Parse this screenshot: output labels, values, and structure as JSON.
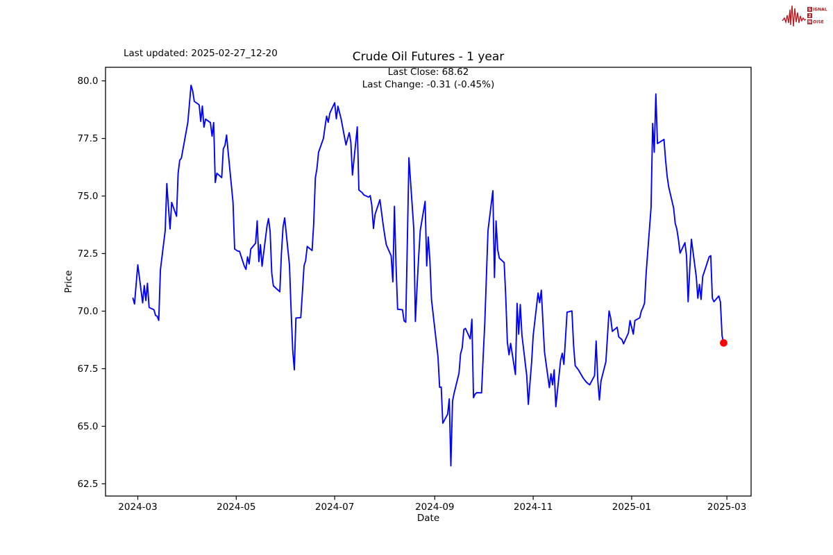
{
  "header": {
    "last_updated": "Last updated: 2025-02-27_12-20",
    "title": "Crude Oil Futures - 1 year",
    "last_close_line": "Last Close: 68.62",
    "last_change_line": "Last Change: -0.31 (-0.45%)"
  },
  "logo": {
    "s1": "S",
    "s1rest": "IGNAL",
    "s2": "2",
    "s3": "N",
    "s3rest": "OISE",
    "color": "#b01f24"
  },
  "chart_data": {
    "type": "line",
    "title": "Crude Oil Futures - 1 year",
    "xlabel": "Date",
    "ylabel": "Price",
    "grid": false,
    "legend": "none",
    "line_color": "#0000ff",
    "last_point_color": "#ff0000",
    "xlim": [
      "2024-02-10",
      "2025-03-16"
    ],
    "ylim": [
      61.97,
      80.59
    ],
    "y_ticks": [
      80.0,
      77.5,
      75.0,
      72.5,
      70.0,
      67.5,
      65.0,
      62.5
    ],
    "x_ticks": [
      {
        "v": "2024-03-01",
        "label": "2024-03"
      },
      {
        "v": "2024-05-01",
        "label": "2024-05"
      },
      {
        "v": "2024-07-01",
        "label": "2024-07"
      },
      {
        "v": "2024-09-01",
        "label": "2024-09"
      },
      {
        "v": "2024-11-01",
        "label": "2024-11"
      },
      {
        "v": "2025-01-01",
        "label": "2025-01"
      },
      {
        "v": "2025-03-01",
        "label": "2025-03"
      }
    ],
    "series": [
      {
        "name": "Crude Oil Futures",
        "dates": [
          "2024-02-27",
          "2024-02-28",
          "2024-02-29",
          "2024-03-01",
          "2024-03-04",
          "2024-03-05",
          "2024-03-06",
          "2024-03-07",
          "2024-03-08",
          "2024-03-11",
          "2024-03-12",
          "2024-03-13",
          "2024-03-14",
          "2024-03-15",
          "2024-03-18",
          "2024-03-19",
          "2024-03-20",
          "2024-03-21",
          "2024-03-22",
          "2024-03-25",
          "2024-03-26",
          "2024-03-27",
          "2024-03-28",
          "2024-04-01",
          "2024-04-02",
          "2024-04-03",
          "2024-04-04",
          "2024-04-05",
          "2024-04-08",
          "2024-04-09",
          "2024-04-10",
          "2024-04-11",
          "2024-04-12",
          "2024-04-15",
          "2024-04-16",
          "2024-04-17",
          "2024-04-18",
          "2024-04-19",
          "2024-04-22",
          "2024-04-23",
          "2024-04-24",
          "2024-04-25",
          "2024-04-26",
          "2024-04-29",
          "2024-04-30",
          "2024-05-01",
          "2024-05-02",
          "2024-05-03",
          "2024-05-06",
          "2024-05-07",
          "2024-05-08",
          "2024-05-09",
          "2024-05-10",
          "2024-05-13",
          "2024-05-14",
          "2024-05-15",
          "2024-05-16",
          "2024-05-17",
          "2024-05-20",
          "2024-05-21",
          "2024-05-22",
          "2024-05-23",
          "2024-05-24",
          "2024-05-28",
          "2024-05-29",
          "2024-05-30",
          "2024-05-31",
          "2024-06-03",
          "2024-06-04",
          "2024-06-05",
          "2024-06-06",
          "2024-06-07",
          "2024-06-10",
          "2024-06-11",
          "2024-06-12",
          "2024-06-13",
          "2024-06-14",
          "2024-06-17",
          "2024-06-18",
          "2024-06-19",
          "2024-06-20",
          "2024-06-21",
          "2024-06-24",
          "2024-06-25",
          "2024-06-26",
          "2024-06-27",
          "2024-06-28",
          "2024-07-01",
          "2024-07-02",
          "2024-07-03",
          "2024-07-05",
          "2024-07-08",
          "2024-07-09",
          "2024-07-10",
          "2024-07-11",
          "2024-07-12",
          "2024-07-15",
          "2024-07-16",
          "2024-07-17",
          "2024-07-18",
          "2024-07-19",
          "2024-07-22",
          "2024-07-23",
          "2024-07-24",
          "2024-07-25",
          "2024-07-26",
          "2024-07-29",
          "2024-07-30",
          "2024-07-31",
          "2024-08-01",
          "2024-08-02",
          "2024-08-05",
          "2024-08-06",
          "2024-08-07",
          "2024-08-08",
          "2024-08-09",
          "2024-08-12",
          "2024-08-13",
          "2024-08-14",
          "2024-08-15",
          "2024-08-16",
          "2024-08-19",
          "2024-08-20",
          "2024-08-21",
          "2024-08-22",
          "2024-08-23",
          "2024-08-26",
          "2024-08-27",
          "2024-08-28",
          "2024-08-29",
          "2024-08-30",
          "2024-09-03",
          "2024-09-04",
          "2024-09-05",
          "2024-09-06",
          "2024-09-09",
          "2024-09-10",
          "2024-09-11",
          "2024-09-12",
          "2024-09-13",
          "2024-09-16",
          "2024-09-17",
          "2024-09-18",
          "2024-09-19",
          "2024-09-20",
          "2024-09-23",
          "2024-09-24",
          "2024-09-25",
          "2024-09-26",
          "2024-09-27",
          "2024-09-30",
          "2024-10-01",
          "2024-10-02",
          "2024-10-03",
          "2024-10-04",
          "2024-10-07",
          "2024-10-08",
          "2024-10-09",
          "2024-10-10",
          "2024-10-11",
          "2024-10-14",
          "2024-10-15",
          "2024-10-16",
          "2024-10-17",
          "2024-10-18",
          "2024-10-21",
          "2024-10-22",
          "2024-10-23",
          "2024-10-24",
          "2024-10-25",
          "2024-10-28",
          "2024-10-29",
          "2024-10-30",
          "2024-10-31",
          "2024-11-01",
          "2024-11-04",
          "2024-11-05",
          "2024-11-06",
          "2024-11-07",
          "2024-11-08",
          "2024-11-11",
          "2024-11-12",
          "2024-11-13",
          "2024-11-14",
          "2024-11-15",
          "2024-11-18",
          "2024-11-19",
          "2024-11-20",
          "2024-11-21",
          "2024-11-22",
          "2024-11-25",
          "2024-11-26",
          "2024-11-27",
          "2024-11-29",
          "2024-12-02",
          "2024-12-03",
          "2024-12-04",
          "2024-12-05",
          "2024-12-06",
          "2024-12-09",
          "2024-12-10",
          "2024-12-11",
          "2024-12-12",
          "2024-12-13",
          "2024-12-16",
          "2024-12-17",
          "2024-12-18",
          "2024-12-19",
          "2024-12-20",
          "2024-12-23",
          "2024-12-24",
          "2024-12-26",
          "2024-12-27",
          "2024-12-30",
          "2024-12-31",
          "2025-01-02",
          "2025-01-03",
          "2025-01-06",
          "2025-01-07",
          "2025-01-08",
          "2025-01-09",
          "2025-01-10",
          "2025-01-13",
          "2025-01-14",
          "2025-01-15",
          "2025-01-16",
          "2025-01-17",
          "2025-01-21",
          "2025-01-22",
          "2025-01-23",
          "2025-01-24",
          "2025-01-27",
          "2025-01-28",
          "2025-01-29",
          "2025-01-30",
          "2025-01-31",
          "2025-02-03",
          "2025-02-04",
          "2025-02-05",
          "2025-02-06",
          "2025-02-07",
          "2025-02-10",
          "2025-02-11",
          "2025-02-12",
          "2025-02-13",
          "2025-02-14",
          "2025-02-18",
          "2025-02-19",
          "2025-02-20",
          "2025-02-21",
          "2025-02-24",
          "2025-02-25",
          "2025-02-26",
          "2025-02-27"
        ],
        "values": [
          70.56,
          70.31,
          71.2,
          72.01,
          70.36,
          71.11,
          70.46,
          71.21,
          70.16,
          70.06,
          69.81,
          69.78,
          69.6,
          71.8,
          73.5,
          75.54,
          74.5,
          73.57,
          74.72,
          74.12,
          75.99,
          76.55,
          76.65,
          78.2,
          79.0,
          79.81,
          79.56,
          79.11,
          78.96,
          78.24,
          78.91,
          77.99,
          78.34,
          78.19,
          77.6,
          78.19,
          75.59,
          75.99,
          75.8,
          77.05,
          77.2,
          77.65,
          76.9,
          74.72,
          72.7,
          72.65,
          72.61,
          72.6,
          71.96,
          71.81,
          72.36,
          72.05,
          72.7,
          72.95,
          73.92,
          72.15,
          72.89,
          71.95,
          73.67,
          74.02,
          73.47,
          71.65,
          71.1,
          70.84,
          72.5,
          73.67,
          74.05,
          72.0,
          70.0,
          68.3,
          67.45,
          69.7,
          69.72,
          70.8,
          71.97,
          72.2,
          72.81,
          72.63,
          73.8,
          75.78,
          76.2,
          76.9,
          77.5,
          78.0,
          78.47,
          78.2,
          78.6,
          79.05,
          78.35,
          78.9,
          78.35,
          77.22,
          77.5,
          77.75,
          77.34,
          75.91,
          78.0,
          75.26,
          75.2,
          75.15,
          75.05,
          74.95,
          75.02,
          74.6,
          73.59,
          74.2,
          74.84,
          74.3,
          73.77,
          73.3,
          72.88,
          72.4,
          71.27,
          74.55,
          72.0,
          70.08,
          70.06,
          69.58,
          69.52,
          73.0,
          76.66,
          73.57,
          69.55,
          71.0,
          72.3,
          73.5,
          74.77,
          71.96,
          73.22,
          72.2,
          70.5,
          68.0,
          66.69,
          66.7,
          65.13,
          65.53,
          66.19,
          63.28,
          66.09,
          66.44,
          67.3,
          68.15,
          68.4,
          69.2,
          69.25,
          68.8,
          69.65,
          66.24,
          66.4,
          66.46,
          66.45,
          68.0,
          69.5,
          71.5,
          73.5,
          75.23,
          71.46,
          73.92,
          72.66,
          72.3,
          72.11,
          70.6,
          68.65,
          68.1,
          68.6,
          67.25,
          70.34,
          69.0,
          70.29,
          68.95,
          67.2,
          65.95,
          66.9,
          67.76,
          68.94,
          70.79,
          70.37,
          70.91,
          69.54,
          68.23,
          66.68,
          67.28,
          66.8,
          67.45,
          65.85,
          67.87,
          68.17,
          67.69,
          68.8,
          69.95,
          70.01,
          68.52,
          67.63,
          67.45,
          67.09,
          67.0,
          66.91,
          66.85,
          66.8,
          67.2,
          68.7,
          67.03,
          66.14,
          66.97,
          67.8,
          68.9,
          70.01,
          69.71,
          69.12,
          69.3,
          68.88,
          68.76,
          68.58,
          69.06,
          69.59,
          69.0,
          69.59,
          69.71,
          70.01,
          70.15,
          70.35,
          71.68,
          74.5,
          78.15,
          76.9,
          79.43,
          77.28,
          77.46,
          76.57,
          75.85,
          75.38,
          74.48,
          73.81,
          73.57,
          73.1,
          72.52,
          72.97,
          72.4,
          70.41,
          71.8,
          73.12,
          71.5,
          70.56,
          71.16,
          70.51,
          71.5,
          72.36,
          72.41,
          70.56,
          70.41,
          70.66,
          70.4,
          68.93,
          68.62
        ]
      }
    ],
    "last_point": {
      "date": "2025-02-27",
      "value": 68.62
    }
  }
}
